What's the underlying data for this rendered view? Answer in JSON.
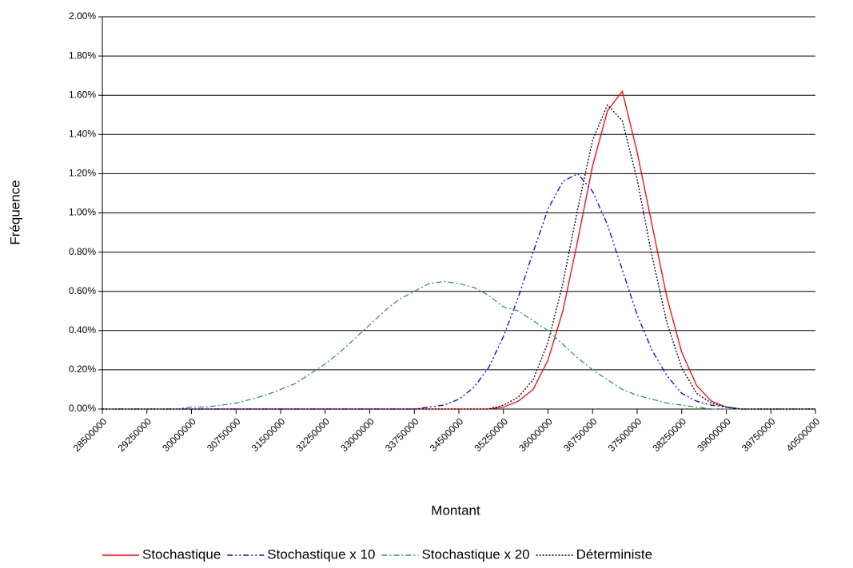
{
  "chart_data": {
    "type": "line",
    "x_label": "Montant",
    "y_label": "Fréquence",
    "x": [
      28500000,
      28750000,
      29000000,
      29250000,
      29500000,
      29750000,
      30000000,
      30250000,
      30500000,
      30750000,
      31000000,
      31250000,
      31500000,
      31750000,
      32000000,
      32250000,
      32500000,
      32750000,
      33000000,
      33250000,
      33500000,
      33750000,
      34000000,
      34250000,
      34500000,
      34750000,
      35000000,
      35250000,
      35500000,
      35750000,
      36000000,
      36250000,
      36500000,
      36750000,
      37000000,
      37250000,
      37500000,
      37750000,
      38000000,
      38250000,
      38500000,
      38750000,
      39000000,
      39250000,
      39500000,
      39750000,
      40000000,
      40250000,
      40500000
    ],
    "series": [
      {
        "name": "Stochastique",
        "color": "#ff0000",
        "dash": "solid",
        "values": [
          0,
          0,
          0,
          0,
          0,
          0,
          0,
          0,
          0,
          0,
          0,
          0,
          0,
          0,
          0,
          0,
          0,
          0,
          0,
          0,
          0,
          0,
          0,
          0,
          0,
          0,
          0,
          0.01,
          0.04,
          0.1,
          0.25,
          0.5,
          0.86,
          1.24,
          1.52,
          1.62,
          1.31,
          0.94,
          0.57,
          0.29,
          0.12,
          0.04,
          0.01,
          0,
          0,
          0,
          0,
          0,
          0
        ]
      },
      {
        "name": "Stochastique x 10",
        "color": "#0000ff",
        "dash": "dashdotdot",
        "values": [
          0,
          0,
          0,
          0,
          0,
          0,
          0,
          0,
          0,
          0,
          0,
          0,
          0,
          0,
          0,
          0,
          0,
          0,
          0,
          0,
          0,
          0,
          0.01,
          0.02,
          0.05,
          0.11,
          0.21,
          0.37,
          0.57,
          0.8,
          1.02,
          1.16,
          1.2,
          1.11,
          0.94,
          0.71,
          0.48,
          0.3,
          0.17,
          0.08,
          0.04,
          0.02,
          0.01,
          0,
          0,
          0,
          0,
          0,
          0
        ]
      },
      {
        "name": "Stochastique x 20",
        "color": "#339966",
        "dash": "dashdot",
        "values": [
          0,
          0,
          0,
          0,
          0,
          0,
          0.01,
          0.01,
          0.02,
          0.03,
          0.05,
          0.07,
          0.1,
          0.13,
          0.18,
          0.23,
          0.29,
          0.36,
          0.43,
          0.5,
          0.56,
          0.6,
          0.64,
          0.65,
          0.64,
          0.62,
          0.58,
          0.52,
          0.5,
          0.45,
          0.4,
          0.33,
          0.26,
          0.2,
          0.15,
          0.1,
          0.07,
          0.05,
          0.03,
          0.02,
          0.01,
          0,
          0,
          0,
          0,
          0,
          0,
          0,
          0
        ]
      },
      {
        "name": "Déterministe",
        "color": "#000000",
        "dash": "dotted",
        "values": [
          0,
          0,
          0,
          0,
          0,
          0,
          0,
          0,
          0,
          0,
          0,
          0,
          0,
          0,
          0,
          0,
          0,
          0,
          0,
          0,
          0,
          0,
          0,
          0,
          0,
          0,
          0,
          0.02,
          0.06,
          0.15,
          0.34,
          0.64,
          1.02,
          1.37,
          1.55,
          1.47,
          1.17,
          0.78,
          0.44,
          0.21,
          0.08,
          0.03,
          0.01,
          0,
          0,
          0,
          0,
          0,
          0
        ]
      }
    ],
    "xlim": [
      28500000,
      40500000
    ],
    "xticks": [
      28500000,
      29250000,
      30000000,
      30750000,
      31500000,
      32250000,
      33000000,
      33750000,
      34500000,
      35250000,
      36000000,
      36750000,
      37500000,
      38250000,
      39000000,
      39750000,
      40500000
    ],
    "ylim": [
      0,
      2
    ],
    "yticks": [
      {
        "value": 0,
        "label": "0.00%"
      },
      {
        "value": 0.2,
        "label": "0.20%"
      },
      {
        "value": 0.4,
        "label": "0.40%"
      },
      {
        "value": 0.6,
        "label": "0.60%"
      },
      {
        "value": 0.8,
        "label": "0.80%"
      },
      {
        "value": 1,
        "label": "1.00%"
      },
      {
        "value": 1.2,
        "label": "1.20%"
      },
      {
        "value": 1.4,
        "label": "1.40%"
      },
      {
        "value": 1.6,
        "label": "1.60%"
      },
      {
        "value": 1.8,
        "label": "1.80%"
      },
      {
        "value": 2,
        "label": "2.00%"
      }
    ],
    "grid": true,
    "legend": "bottom"
  }
}
